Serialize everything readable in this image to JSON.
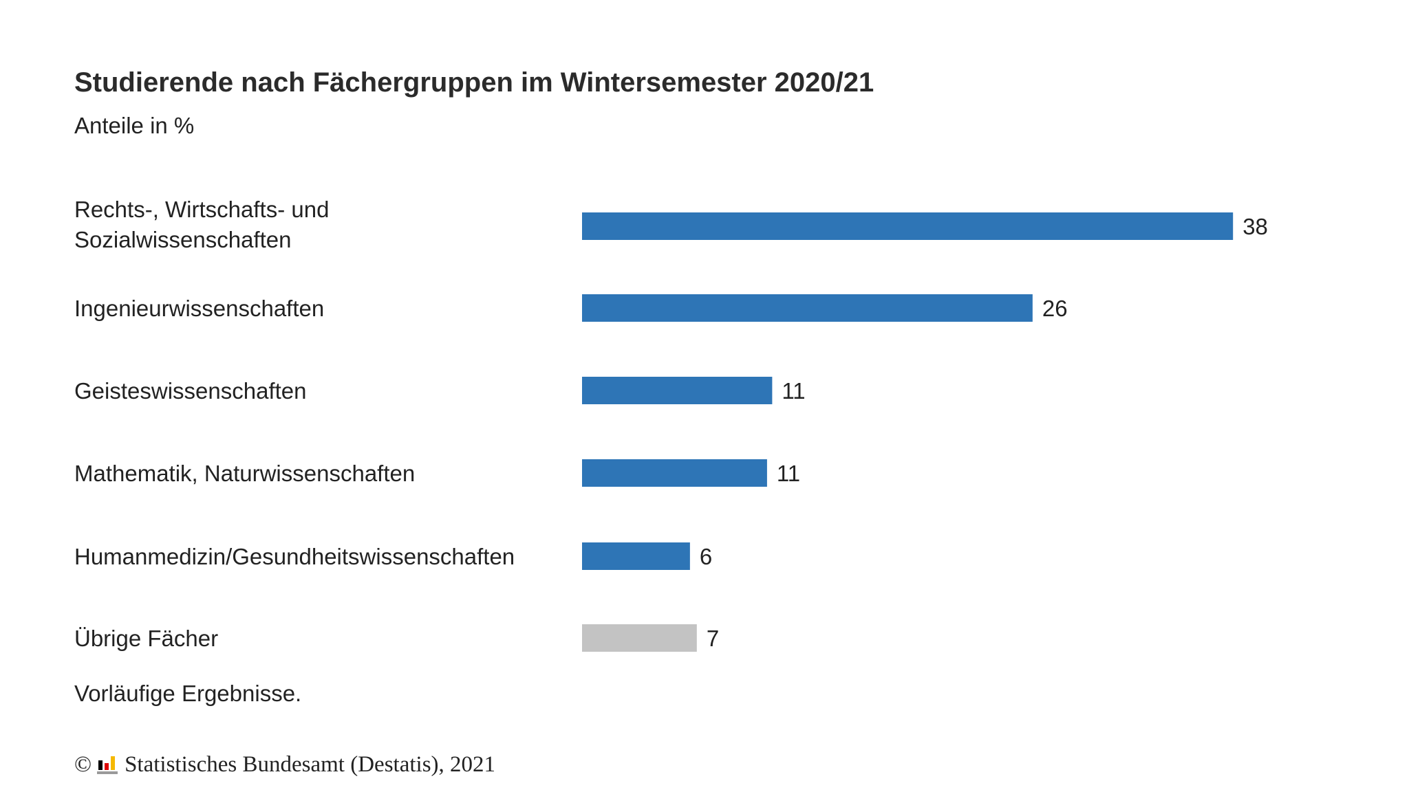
{
  "chart_data": {
    "type": "bar",
    "orientation": "horizontal",
    "title": "Studierende nach Fächergruppen im Wintersemester 2020/21",
    "subtitle": "Anteile in %",
    "categories": [
      "Rechts-, Wirtschafts- und Sozialwissenschaften",
      "Ingenieurwissenschaften",
      "Geisteswissenschaften",
      "Mathematik, Naturwissenschaften",
      "Humanmedizin/Gesundheitswissenschaften",
      "Übrige Fächer"
    ],
    "category_lines": [
      [
        "Rechts-, Wirtschafts- und",
        "Sozialwissenschaften"
      ],
      [
        "Ingenieurwissenschaften"
      ],
      [
        "Geisteswissenschaften"
      ],
      [
        "Mathematik, Naturwissenschaften"
      ],
      [
        "Humanmedizin/Gesundheitswissenschaften"
      ],
      [
        "Übrige Fächer"
      ]
    ],
    "values": [
      38,
      26,
      11,
      11,
      6,
      7
    ],
    "value_labels": [
      "38",
      "26",
      "11",
      "11",
      "6",
      "7"
    ],
    "bar_lengths": [
      38,
      26.3,
      11.1,
      10.8,
      6.3,
      6.7
    ],
    "bar_colors": [
      "#2e75b6",
      "#2e75b6",
      "#2e75b6",
      "#2e75b6",
      "#2e75b6",
      "#c3c3c3"
    ],
    "grid": false,
    "xlim": [
      0,
      40
    ],
    "note": "Vorläufige Ergebnisse."
  },
  "footer": {
    "copyright": "©",
    "source": "Statistisches Bundesamt (Destatis), 2021"
  },
  "colors": {
    "primary_bar": "#2e75b6",
    "other_bar": "#c3c3c3",
    "text": "#222222"
  }
}
